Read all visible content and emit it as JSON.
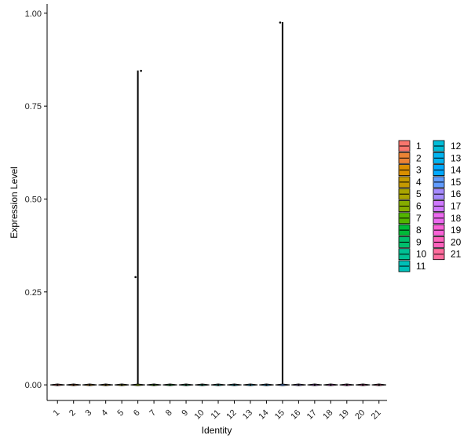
{
  "chart_data": {
    "type": "violin",
    "x_label": "Identity",
    "y_label": "Expression Level",
    "categories": [
      "1",
      "2",
      "3",
      "4",
      "5",
      "6",
      "7",
      "8",
      "9",
      "10",
      "11",
      "12",
      "13",
      "14",
      "15",
      "16",
      "17",
      "18",
      "19",
      "20",
      "21"
    ],
    "values": [
      0,
      0,
      0,
      0,
      0,
      0.845,
      0,
      0,
      0,
      0,
      0,
      0,
      0,
      0,
      0.975,
      0,
      0,
      0,
      0,
      0,
      0
    ],
    "points": [
      {
        "category": "6",
        "value": 0.29
      },
      {
        "category": "6",
        "value": 0.845
      },
      {
        "category": "15",
        "value": 0.975
      }
    ],
    "colors": [
      "#F8766D",
      "#EB8335",
      "#DA8F00",
      "#C49A00",
      "#A9A400",
      "#86AC00",
      "#53B400",
      "#00BA38",
      "#00BE6C",
      "#00C094",
      "#00C0B8",
      "#00BDD8",
      "#00B4F0",
      "#00A9FF",
      "#619CFF",
      "#A58AFF",
      "#CF78FF",
      "#EC69EF",
      "#FB61D7",
      "#FF62BC",
      "#FF6C9D"
    ],
    "ylim": [
      -0.042,
      1.025
    ],
    "yticks": [
      {
        "value": 0,
        "label": "0.00"
      },
      {
        "value": 0.25,
        "label": "0.25"
      },
      {
        "value": 0.5,
        "label": "0.50"
      },
      {
        "value": 0.75,
        "label": "0.75"
      },
      {
        "value": 1,
        "label": "1.00"
      }
    ],
    "grid": false
  }
}
